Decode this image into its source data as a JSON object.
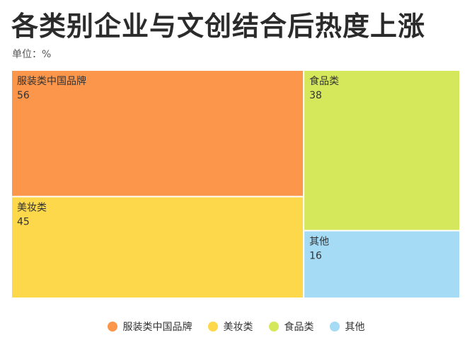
{
  "unit_label": "单位：%",
  "chart_data": {
    "type": "treemap",
    "title": "各类别企业与文创结合后热度上涨",
    "unit": "%",
    "legend_position": "bottom-center",
    "series": [
      {
        "name": "服装类中国品牌",
        "value": 56,
        "color": "#fb964b"
      },
      {
        "name": "美妆类",
        "value": 45,
        "color": "#fdd84b"
      },
      {
        "name": "食品类",
        "value": 38,
        "color": "#d5e85b"
      },
      {
        "name": "其他",
        "value": 16,
        "color": "#a6dbf6"
      }
    ]
  }
}
